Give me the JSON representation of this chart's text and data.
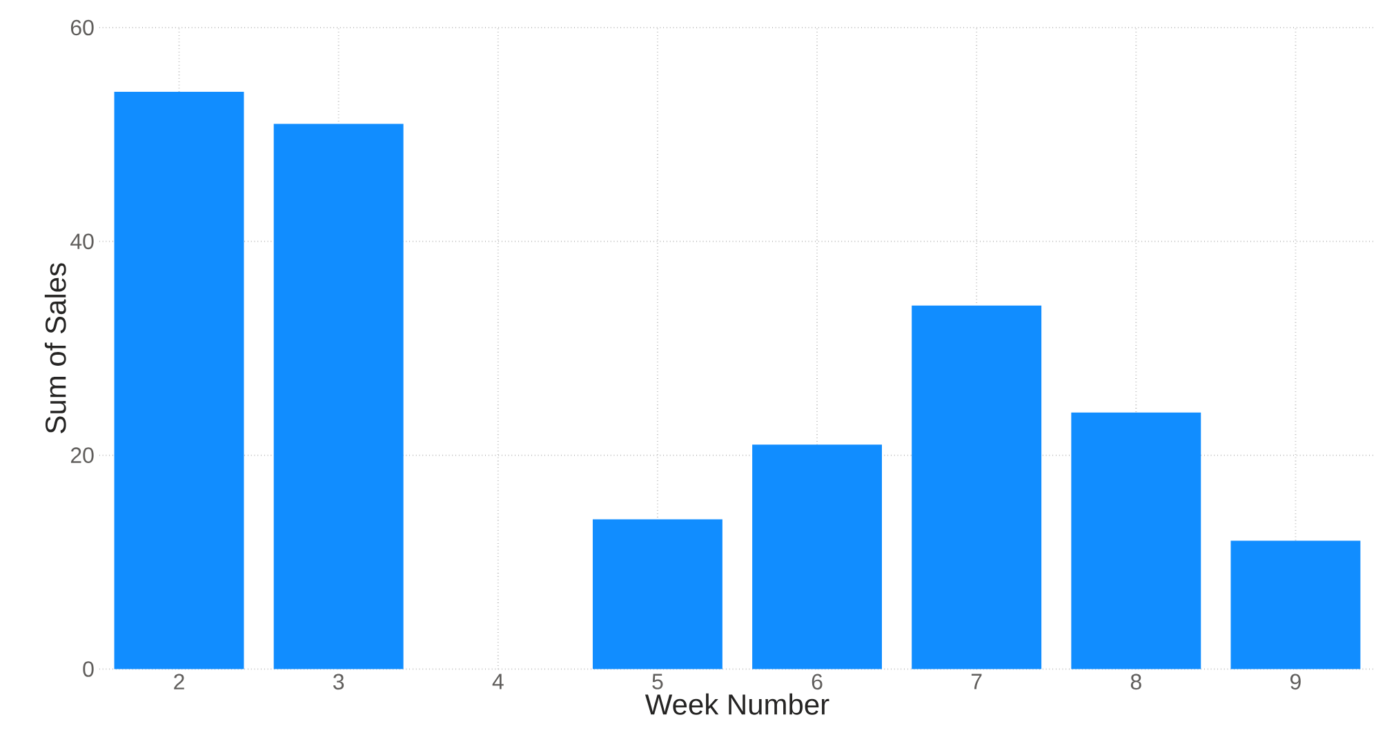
{
  "chart_data": {
    "type": "bar",
    "xlabel": "Week Number",
    "ylabel": "Sum of Sales",
    "categories": [
      "2",
      "3",
      "4",
      "5",
      "6",
      "7",
      "8",
      "9"
    ],
    "values": [
      54,
      51,
      null,
      14,
      21,
      34,
      24,
      12
    ],
    "color": "#118dff",
    "ylim": [
      0,
      60
    ],
    "yticks": [
      0,
      20,
      40,
      60
    ],
    "grid": true
  }
}
